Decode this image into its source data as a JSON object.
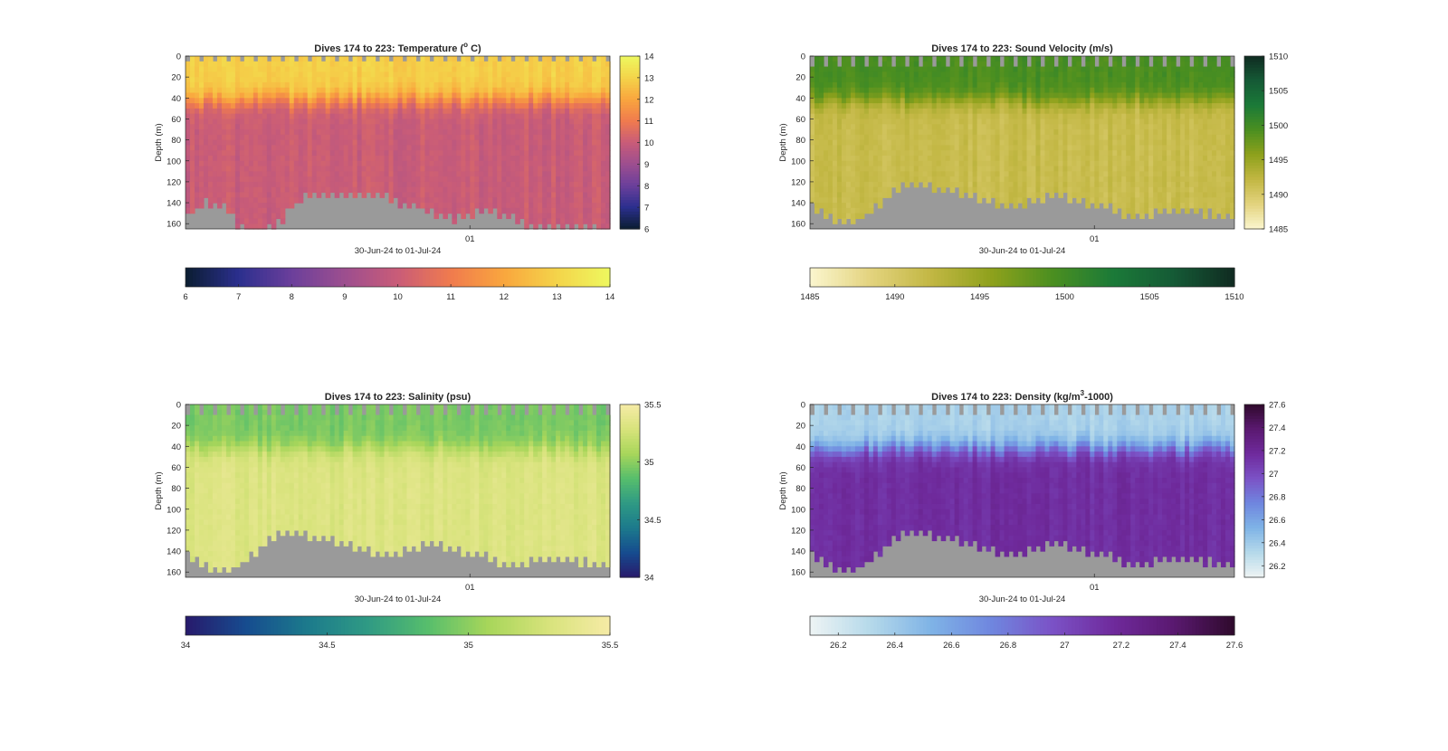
{
  "chart_data": [
    {
      "type": "heatmap",
      "title": "Dives 174 to 223: Temperature (° C)",
      "title_parts": {
        "pre": "Dives 174 to 223: Temperature (",
        "sup": "o",
        "post": " C)"
      },
      "xlabel": "30-Jun-24 to 01-Jul-24",
      "x_ticks": [
        "01"
      ],
      "x_tick_position": 0.67,
      "ylabel": "Depth (m)",
      "ylim": [
        0,
        165
      ],
      "y_ticks": [
        0,
        20,
        40,
        60,
        80,
        100,
        120,
        140,
        160
      ],
      "clim": [
        6,
        14
      ],
      "colorbar_right_ticks": [
        6,
        7,
        8,
        9,
        10,
        11,
        12,
        13,
        14
      ],
      "colorbar_bottom_ticks": [
        6,
        7,
        8,
        9,
        10,
        11,
        12,
        13,
        14
      ],
      "colormap": [
        "#0b1d31",
        "#2b2f8e",
        "#6b3f9b",
        "#9d4e8f",
        "#c95c78",
        "#f07b4e",
        "#f9a63e",
        "#f4d44a",
        "#eef85f"
      ],
      "surface_value": 12.9,
      "deep_value": 10.0,
      "thermocline_depth_m": 42,
      "bottom_depth_profile_m": [
        150,
        136,
        140,
        160,
        165,
        160,
        140,
        128,
        128,
        130,
        128,
        130,
        136,
        140,
        148,
        152,
        150,
        145,
        148,
        155,
        160,
        162,
        160,
        162,
        163
      ],
      "surface_gap_value_m": 3,
      "nodata_color": "#9a9a9a"
    },
    {
      "type": "heatmap",
      "title": "Dives 174 to 223: Sound Velocity (m/s)",
      "xlabel": "30-Jun-24 to 01-Jul-24",
      "x_ticks": [
        "01"
      ],
      "x_tick_position": 0.67,
      "ylabel": "Depth (m)",
      "ylim": [
        0,
        165
      ],
      "y_ticks": [
        0,
        20,
        40,
        60,
        80,
        100,
        120,
        140,
        160
      ],
      "clim": [
        1485,
        1510
      ],
      "colorbar_right_ticks": [
        1485,
        1490,
        1495,
        1500,
        1505,
        1510
      ],
      "colorbar_bottom_ticks": [
        1485,
        1490,
        1495,
        1500,
        1505,
        1510
      ],
      "colormap": [
        "#fbf6cf",
        "#e3d37e",
        "#c2b743",
        "#8ea11c",
        "#4b8f20",
        "#1b7a38",
        "#155a36",
        "#102b21"
      ],
      "surface_value": 1499.5,
      "deep_value": 1491.5,
      "thermocline_depth_m": 42,
      "bottom_depth_profile_m": [
        140,
        150,
        158,
        150,
        135,
        122,
        118,
        122,
        125,
        130,
        135,
        140,
        138,
        133,
        130,
        134,
        138,
        142,
        150,
        148,
        146,
        145,
        146,
        148,
        150
      ],
      "surface_gap_value_m": 10,
      "nodata_color": "#9a9a9a"
    },
    {
      "type": "heatmap",
      "title": "Dives 174 to 223: Salinity (psu)",
      "xlabel": "30-Jun-24 to 01-Jul-24",
      "x_ticks": [
        "01"
      ],
      "x_tick_position": 0.67,
      "ylabel": "Depth (m)",
      "ylim": [
        0,
        165
      ],
      "y_ticks": [
        0,
        20,
        40,
        60,
        80,
        100,
        120,
        140,
        160
      ],
      "clim": [
        34,
        35.5
      ],
      "colorbar_right_ticks": [
        34,
        34.5,
        35,
        35.5
      ],
      "colorbar_bottom_ticks": [
        34,
        34.5,
        35,
        35.5
      ],
      "colormap": [
        "#281a6c",
        "#164c8f",
        "#1c7a8c",
        "#2f9a84",
        "#57be6c",
        "#a8d65a",
        "#d8e37c",
        "#f6eba6"
      ],
      "surface_value": 34.95,
      "deep_value": 35.32,
      "thermocline_depth_m": 42,
      "bottom_depth_profile_m": [
        140,
        150,
        158,
        150,
        135,
        122,
        118,
        122,
        125,
        130,
        135,
        140,
        138,
        133,
        130,
        134,
        138,
        142,
        150,
        148,
        146,
        145,
        146,
        148,
        150
      ],
      "surface_gap_value_m": 10,
      "nodata_color": "#9a9a9a"
    },
    {
      "type": "heatmap",
      "title": "Dives 174 to 223: Density (kg/m³-1000)",
      "title_parts": {
        "pre": "Dives 174 to 223: Density (kg/m",
        "sup": "3",
        "post": "-1000)"
      },
      "xlabel": "30-Jun-24 to 01-Jul-24",
      "x_ticks": [
        "01"
      ],
      "x_tick_position": 0.67,
      "ylabel": "Depth (m)",
      "ylim": [
        0,
        165
      ],
      "y_ticks": [
        0,
        20,
        40,
        60,
        80,
        100,
        120,
        140,
        160
      ],
      "clim": [
        26.1,
        27.6
      ],
      "colorbar_right_ticks": [
        26.2,
        26.4,
        26.6,
        26.8,
        27,
        27.2,
        27.4,
        27.6
      ],
      "colorbar_bottom_ticks": [
        26.2,
        26.4,
        26.6,
        26.8,
        27,
        27.2,
        27.4,
        27.6
      ],
      "colormap": [
        "#eef4f4",
        "#b5d9ea",
        "#7fb3e6",
        "#6f86df",
        "#7b52c6",
        "#6f2a9c",
        "#5a1970",
        "#2f0a2c"
      ],
      "surface_value": 26.35,
      "deep_value": 27.15,
      "thermocline_depth_m": 42,
      "bottom_depth_profile_m": [
        140,
        150,
        158,
        150,
        135,
        122,
        118,
        122,
        125,
        130,
        135,
        140,
        138,
        133,
        130,
        134,
        138,
        142,
        150,
        148,
        146,
        145,
        146,
        148,
        150
      ],
      "surface_gap_value_m": 10,
      "nodata_color": "#9a9a9a"
    }
  ]
}
